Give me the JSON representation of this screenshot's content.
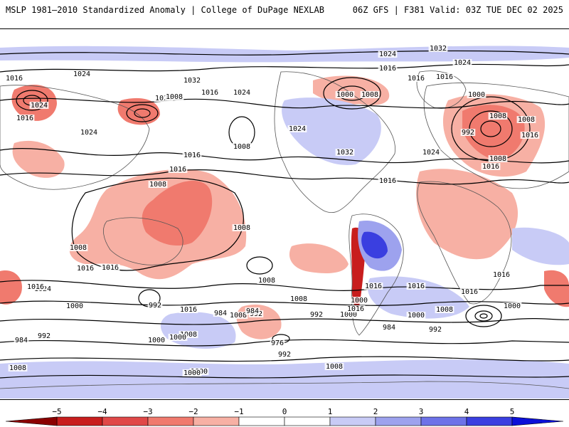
{
  "header": {
    "left_title": "MSLP 1981—2010 Standardized Anomaly | College of DuPage NEXLAB",
    "right_title": "06Z GFS | F381 Valid: 03Z TUE DEC 02 2025"
  },
  "contour_labels": [
    "1032",
    "1024",
    "1024",
    "1016",
    "1024",
    "1024",
    "1032",
    "1008",
    "1016",
    "1024",
    "1016",
    "1000",
    "1008",
    "1016",
    "1016",
    "1000",
    "1008",
    "1024",
    "1008",
    "1016",
    "1024",
    "1032",
    "1024",
    "1016",
    "1024",
    "1008",
    "992",
    "1008",
    "1016",
    "1016",
    "1008",
    "1016",
    "1008",
    "1016",
    "1016",
    "1024",
    "1008",
    "1008",
    "1016",
    "1016",
    "1016",
    "1016",
    "1016",
    "1016",
    "1000",
    "1008",
    "1008",
    "1008",
    "1000",
    "992",
    "1016",
    "1000",
    "984",
    "992",
    "1000",
    "992",
    "984",
    "1000",
    "1008",
    "1000",
    "992",
    "984",
    "976",
    "992",
    "984",
    "992",
    "1000",
    "1016",
    "1008",
    "1000",
    "1008",
    "1000"
  ],
  "colorbar": {
    "ticks": [
      "−5",
      "−4",
      "−3",
      "−2",
      "−1",
      "0",
      "1",
      "2",
      "3",
      "4",
      "5"
    ],
    "colors": [
      "#8b0000",
      "#c81e1e",
      "#e04848",
      "#f07a6e",
      "#f7b0a4",
      "#ffffff",
      "#ffffff",
      "#c8cbf6",
      "#9da2ee",
      "#6d72e8",
      "#3a3fe0",
      "#0c10d8"
    ]
  },
  "icons": [
    "colorbar-left-arrow",
    "colorbar-right-arrow"
  ]
}
